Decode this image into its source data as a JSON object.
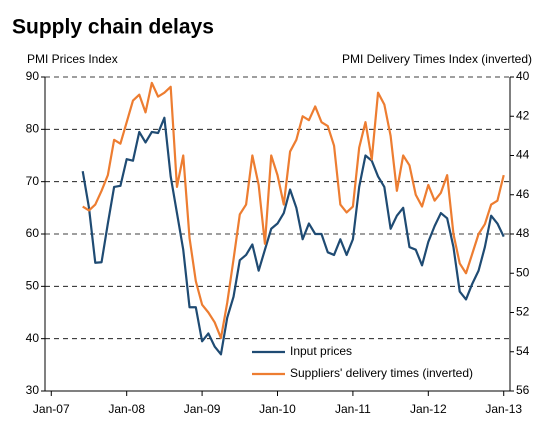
{
  "chart_data": {
    "type": "line",
    "title": "Supply chain delays",
    "y_label": "PMI Prices Index",
    "y2_label": "PMI Delivery Times Index (inverted)",
    "x": [
      5,
      6,
      7,
      8,
      9,
      10,
      11,
      12,
      13,
      14,
      15,
      16,
      17,
      18,
      19,
      20,
      21,
      22,
      23,
      24,
      25,
      26,
      27,
      28,
      29,
      30,
      31,
      32,
      33,
      34,
      35,
      36,
      37,
      38,
      39,
      40,
      41,
      42,
      43,
      44,
      45,
      46,
      47,
      48,
      49,
      50,
      51,
      52,
      53,
      54,
      55,
      56,
      57,
      58,
      59,
      60,
      61,
      62,
      63,
      64,
      65,
      66,
      67,
      68,
      69,
      70,
      71,
      72
    ],
    "xlim": [
      -1,
      73
    ],
    "xticks": [
      {
        "value": 0,
        "label": "Jan-07"
      },
      {
        "value": 12,
        "label": "Jan-08"
      },
      {
        "value": 24,
        "label": "Jan-09"
      },
      {
        "value": 36,
        "label": "Jan-10"
      },
      {
        "value": 48,
        "label": "Jan-11"
      },
      {
        "value": 60,
        "label": "Jan-12"
      },
      {
        "value": 72,
        "label": "Jan-13"
      }
    ],
    "ylim": [
      30,
      90
    ],
    "yticks": [
      30,
      40,
      50,
      60,
      70,
      80,
      90
    ],
    "y2lim": [
      56,
      40
    ],
    "y2ticks": [
      40,
      42,
      44,
      46,
      48,
      50,
      52,
      54,
      56
    ],
    "y2_inverted": true,
    "grid": true,
    "series": [
      {
        "name": "Input prices",
        "color": "#1f4b73",
        "values": [
          72,
          65,
          54.5,
          54.6,
          62,
          69,
          69.2,
          74.3,
          74,
          79.5,
          77.5,
          79.5,
          79.3,
          82.2,
          71,
          64,
          57,
          46,
          46,
          39.5,
          41,
          38.5,
          37,
          44,
          48,
          55,
          56,
          58,
          53,
          57,
          61,
          62,
          64,
          68.5,
          65,
          59,
          62,
          60,
          60,
          56.5,
          56,
          59,
          56,
          59,
          69,
          75,
          74,
          71,
          69,
          61,
          63.5,
          65,
          57.5,
          57,
          54,
          58.5,
          61.5,
          64,
          63,
          57.5,
          49,
          47.5,
          50.5,
          53,
          57.5,
          63.5,
          62,
          59.5
        ]
      },
      {
        "name": "Suppliers' delivery times (inverted)",
        "color": "#ed7d31",
        "axis": "y2",
        "values": [
          46.6,
          46.8,
          46.5,
          45.8,
          45,
          43.2,
          43.4,
          42.3,
          41.2,
          40.9,
          41.8,
          40.3,
          41,
          40.8,
          40.5,
          45.6,
          44,
          48.2,
          50.4,
          51.6,
          52,
          52.5,
          53.3,
          51.5,
          49.3,
          47,
          46.5,
          44,
          45.5,
          48.5,
          44,
          45,
          46.5,
          43.8,
          43.2,
          42,
          42.2,
          41.5,
          42.3,
          42.5,
          43.5,
          46.5,
          46.9,
          46.6,
          43.6,
          42.3,
          44.2,
          40.8,
          41.4,
          43,
          45.8,
          44,
          44.5,
          46,
          46.6,
          45.5,
          46.3,
          45.9,
          45,
          48,
          49.5,
          50,
          49,
          48,
          47.5,
          46.5,
          46.3,
          45
        ]
      }
    ]
  }
}
